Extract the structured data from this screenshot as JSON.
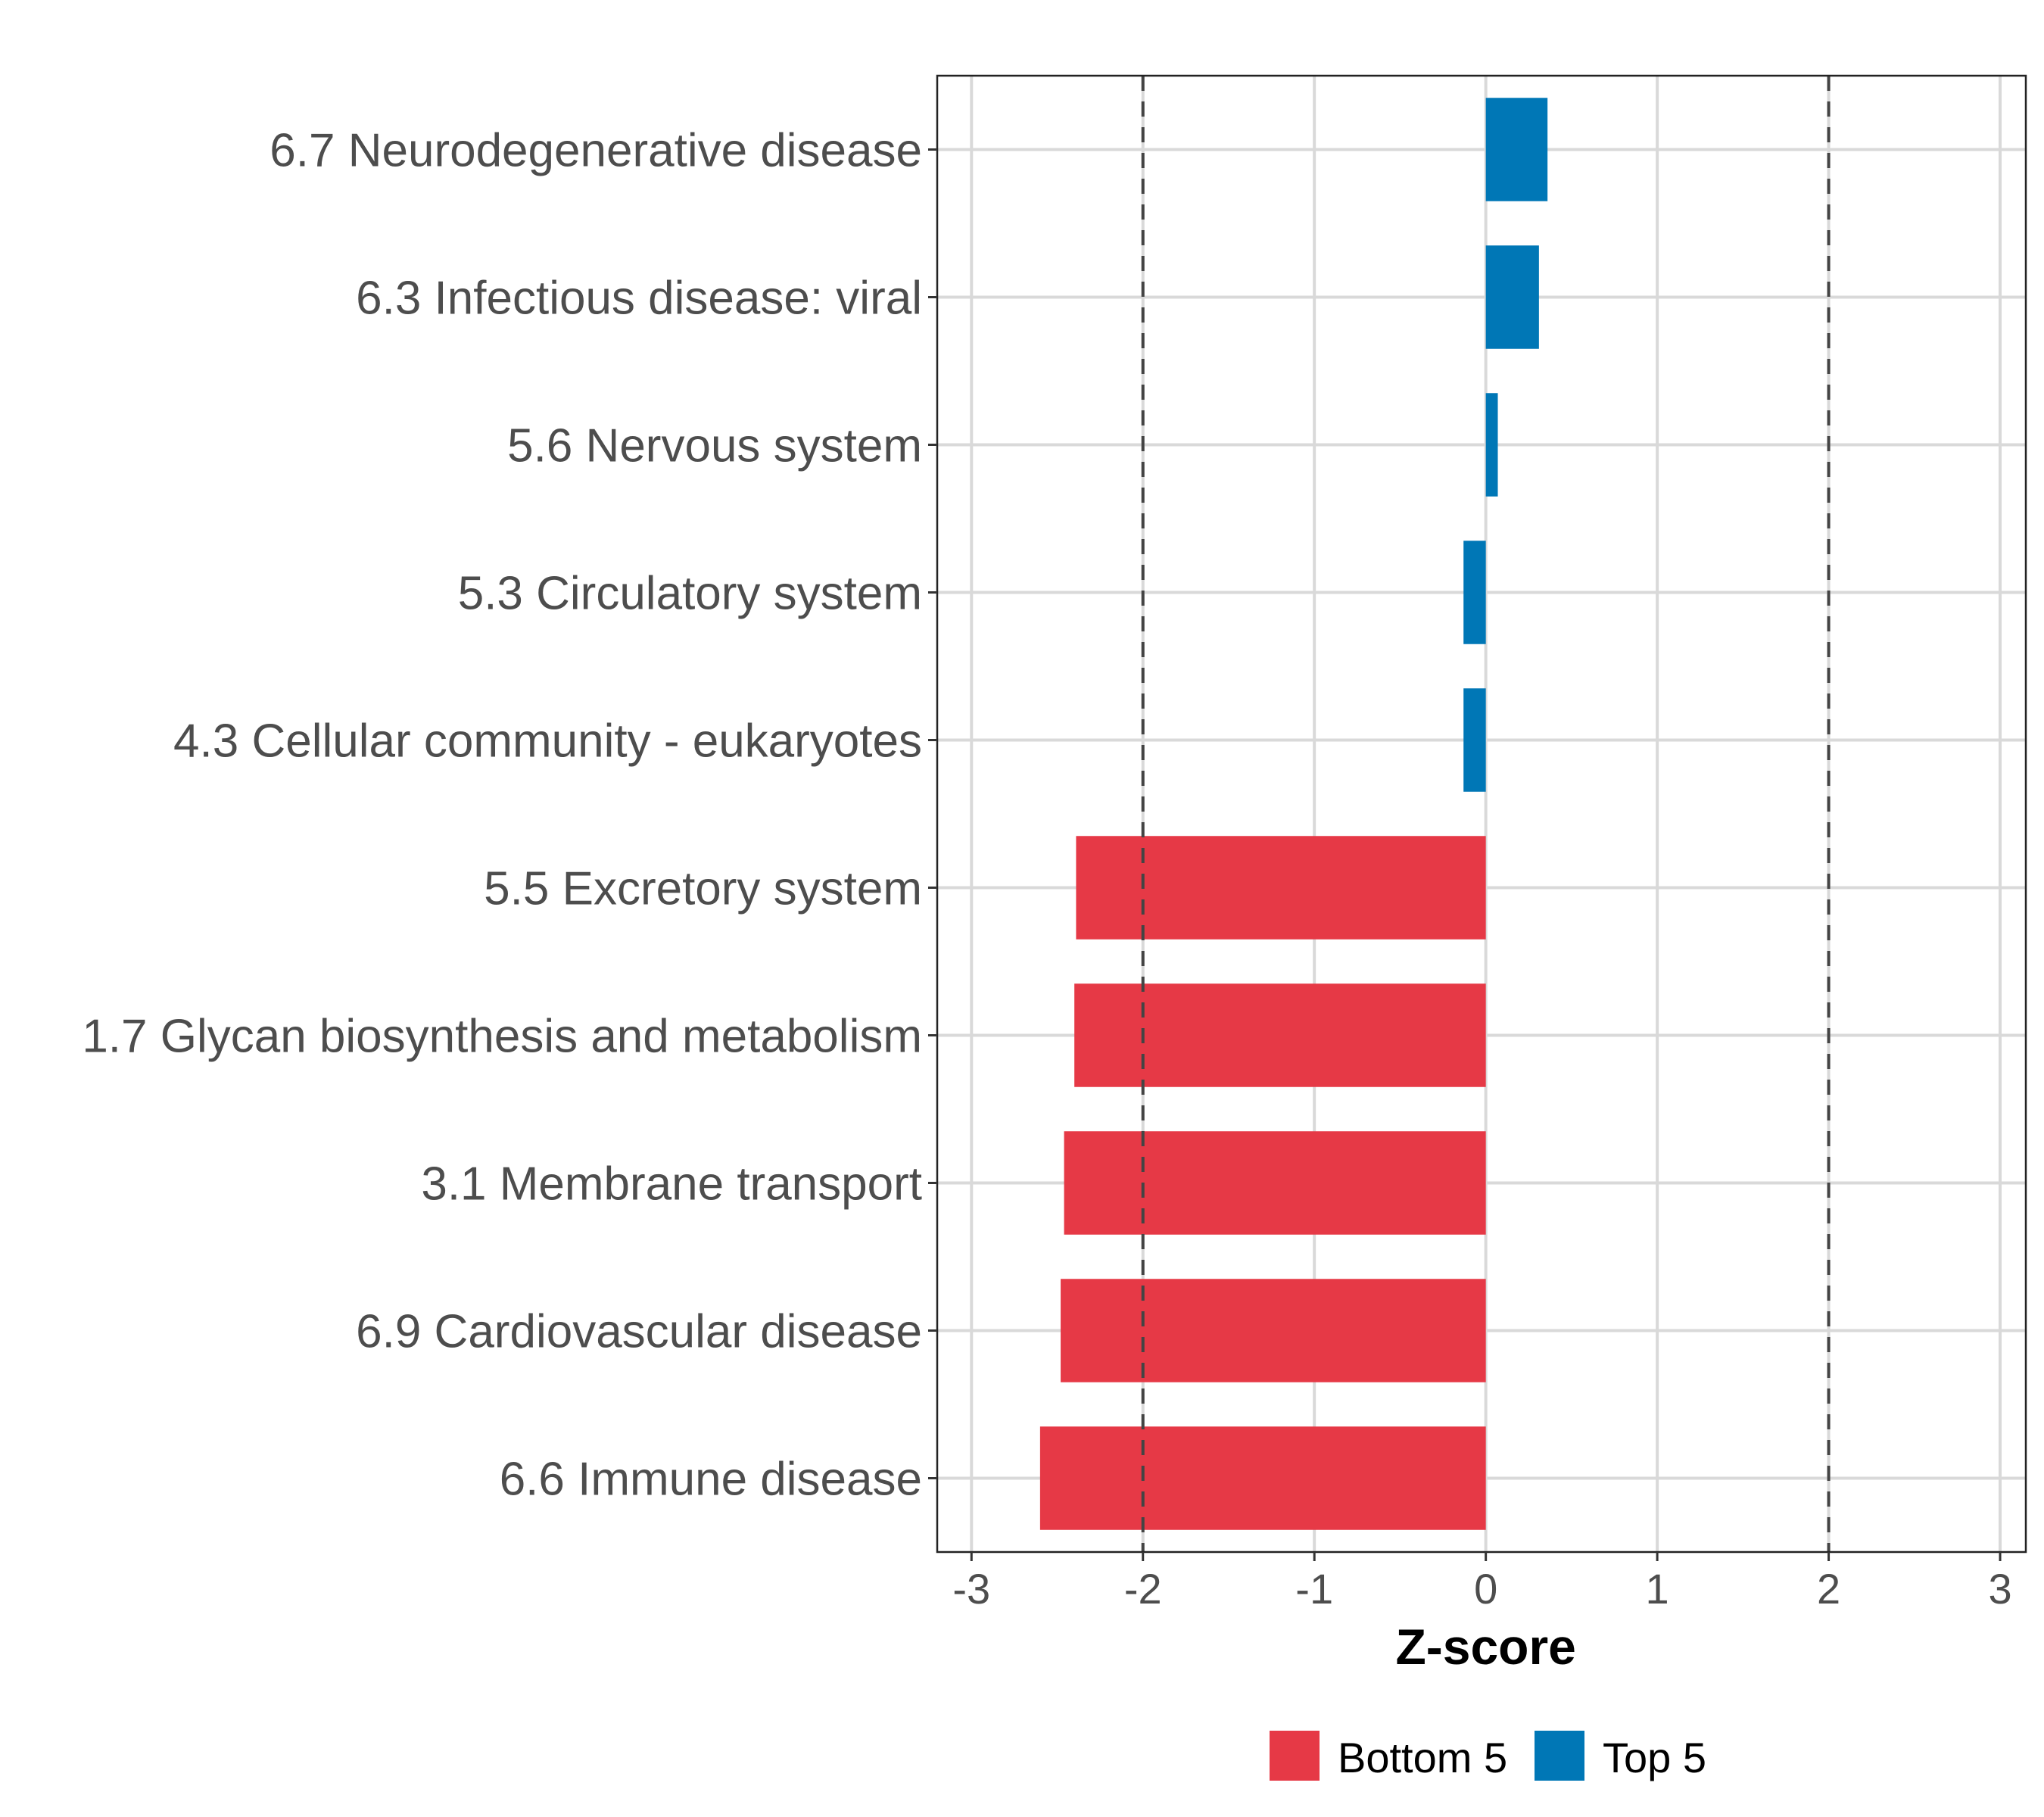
{
  "chart_data": {
    "type": "bar",
    "orientation": "horizontal",
    "title": "",
    "xlabel": "Z-score",
    "ylabel": "",
    "xlim": [
      -3.2,
      3.15
    ],
    "xticks": [
      -3,
      -2,
      -1,
      0,
      1,
      2,
      3
    ],
    "xtick_labels": [
      "-3",
      "-2",
      "-1",
      "0",
      "1",
      "2",
      "3"
    ],
    "reference_lines": [
      -2,
      2
    ],
    "grid": true,
    "legend_position": "bottom",
    "categories": [
      "6.7 Neurodegenerative disease",
      "6.3 Infectious disease: viral",
      "5.6 Nervous system",
      "5.3 Circulatory system",
      "4.3 Cellular community - eukaryotes",
      "5.5 Excretory system",
      "1.7 Glycan biosynthesis and metabolism",
      "3.1 Membrane transport",
      "6.9 Cardiovascular disease",
      "6.6 Immune disease"
    ],
    "values": [
      0.36,
      0.31,
      0.07,
      -0.13,
      -0.13,
      -2.39,
      -2.4,
      -2.46,
      -2.48,
      -2.6
    ],
    "groups": [
      "Top 5",
      "Top 5",
      "Top 5",
      "Top 5",
      "Top 5",
      "Bottom 5",
      "Bottom 5",
      "Bottom 5",
      "Bottom 5",
      "Bottom 5"
    ],
    "legend": [
      {
        "name": "Bottom 5",
        "color": "#E63946"
      },
      {
        "name": "Top 5",
        "color": "#0077B6"
      }
    ]
  }
}
